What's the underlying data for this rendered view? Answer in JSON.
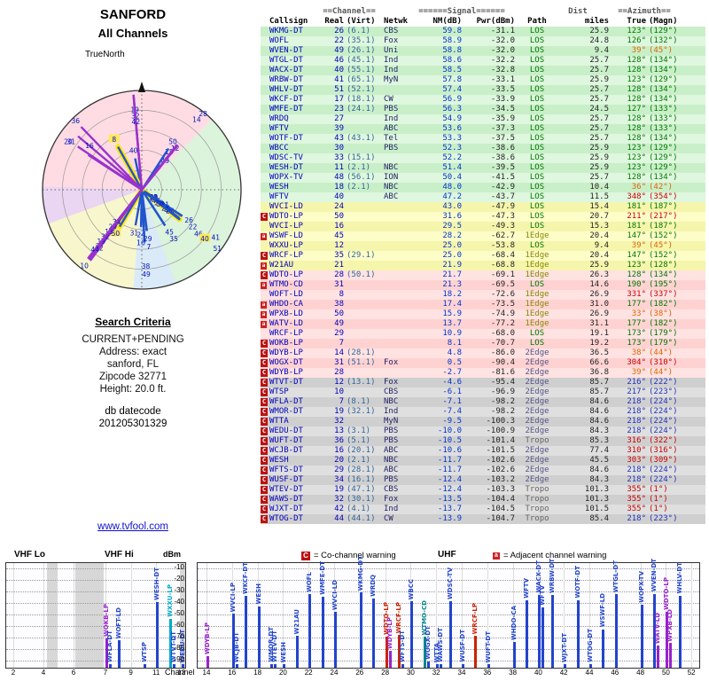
{
  "polar": {
    "title": "SANFORD",
    "subtitle": "All Channels",
    "north": "TrueNorth",
    "wedges": [
      {
        "from": 315,
        "to": 45,
        "color": "#ffc0cc"
      },
      {
        "from": 45,
        "to": 160,
        "color": "#bfe9bf"
      },
      {
        "from": 160,
        "to": 185,
        "color": "#bcd9f2"
      },
      {
        "from": 185,
        "to": 250,
        "color": "#f3efa2"
      },
      {
        "from": 250,
        "to": 272,
        "color": "#d9b3e8"
      },
      {
        "from": 272,
        "to": 315,
        "color": "#ffc0cc"
      }
    ]
  },
  "criteria": {
    "title": "Search Criteria",
    "lines": [
      "CURRENT+PENDING",
      "Address: exact",
      "sanford, FL",
      "Zipcode 32771",
      "Height: 20.0 ft."
    ],
    "datecode_label": "db datecode",
    "datecode": "201205301329"
  },
  "link": {
    "text": "www.tvfool.com"
  },
  "legend": {
    "c_symbol": "C",
    "c_text": "= Co-channel warning",
    "a_symbol": "a",
    "a_text": "= Adjacent channel warning"
  },
  "chart_data": {
    "type": "table",
    "table": {
      "group_headers": {
        "channel": "==Channel==",
        "signal": "======Signal======",
        "dist": "Dist",
        "azimuth": "==Azimuth=="
      },
      "columns": [
        "Callsign",
        "Real",
        "(Virt)",
        "Netwk",
        "NM(dB)",
        "Pwr(dBm)",
        "Path",
        "miles",
        "True",
        "(Magn)"
      ],
      "rows": [
        {
          "cs": "WKMG-DT",
          "re": "26",
          "vi": "(6.1)",
          "nw": "CBS",
          "nm": "59.8",
          "pw": "-31.1",
          "pa": "LOS",
          "mi": "25.9",
          "tr": "123°",
          "mg": "(129°)",
          "b": "g",
          "f": "",
          "ac": "g"
        },
        {
          "cs": "WOFL",
          "re": "22",
          "vi": "(35.1)",
          "nw": "Fox",
          "nm": "58.9",
          "pw": "-32.0",
          "pa": "LOS",
          "mi": "24.8",
          "tr": "126°",
          "mg": "(132°)",
          "b": "g",
          "f": "",
          "ac": "g"
        },
        {
          "cs": "WVEN-DT",
          "re": "49",
          "vi": "(26.1)",
          "nw": "Uni",
          "nm": "58.8",
          "pw": "-32.0",
          "pa": "LOS",
          "mi": "9.4",
          "tr": "39°",
          "mg": "(45°)",
          "b": "g",
          "f": "",
          "ac": "o"
        },
        {
          "cs": "WTGL-DT",
          "re": "46",
          "vi": "(45.1)",
          "nw": "Ind",
          "nm": "58.6",
          "pw": "-32.2",
          "pa": "LOS",
          "mi": "25.7",
          "tr": "128°",
          "mg": "(134°)",
          "b": "g",
          "f": "",
          "ac": "g"
        },
        {
          "cs": "WACX-DT",
          "re": "40",
          "vi": "(55.1)",
          "nw": "Ind",
          "nm": "58.5",
          "pw": "-32.8",
          "pa": "LOS",
          "mi": "25.7",
          "tr": "128°",
          "mg": "(134°)",
          "b": "g",
          "f": "",
          "ac": "g",
          "sh": true
        },
        {
          "cs": "WRBW-DT",
          "re": "41",
          "vi": "(65.1)",
          "nw": "MyN",
          "nm": "57.8",
          "pw": "-33.1",
          "pa": "LOS",
          "mi": "25.9",
          "tr": "123°",
          "mg": "(129°)",
          "b": "g",
          "f": "",
          "ac": "g"
        },
        {
          "cs": "WHLV-DT",
          "re": "51",
          "vi": "(52.1)",
          "nw": "",
          "nm": "57.4",
          "pw": "-33.5",
          "pa": "LOS",
          "mi": "25.7",
          "tr": "128°",
          "mg": "(134°)",
          "b": "g",
          "f": "",
          "ac": "g"
        },
        {
          "cs": "WKCF-DT",
          "re": "17",
          "vi": "(18.1)",
          "nw": "CW",
          "nm": "56.9",
          "pw": "-33.9",
          "pa": "LOS",
          "mi": "25.7",
          "tr": "128°",
          "mg": "(134°)",
          "b": "g",
          "f": "",
          "ac": "g"
        },
        {
          "cs": "WMFE-DT",
          "re": "23",
          "vi": "(24.1)",
          "nw": "PBS",
          "nm": "56.3",
          "pw": "-34.5",
          "pa": "LOS",
          "mi": "24.5",
          "tr": "127°",
          "mg": "(133°)",
          "b": "g",
          "f": "",
          "ac": "g"
        },
        {
          "cs": "WRDQ",
          "re": "27",
          "vi": "",
          "nw": "Ind",
          "nm": "54.9",
          "pw": "-35.9",
          "pa": "LOS",
          "mi": "25.7",
          "tr": "128°",
          "mg": "(133°)",
          "b": "g",
          "f": "",
          "ac": "g"
        },
        {
          "cs": "WFTV",
          "re": "39",
          "vi": "",
          "nw": "ABC",
          "nm": "53.6",
          "pw": "-37.3",
          "pa": "LOS",
          "mi": "25.7",
          "tr": "128°",
          "mg": "(133°)",
          "b": "g",
          "f": "",
          "ac": "g"
        },
        {
          "cs": "WOTF-DT",
          "re": "43",
          "vi": "(43.1)",
          "nw": "Tel",
          "nm": "53.3",
          "pw": "-37.5",
          "pa": "LOS",
          "mi": "25.7",
          "tr": "128°",
          "mg": "(134°)",
          "b": "g",
          "f": "",
          "ac": "g"
        },
        {
          "cs": "WBCC",
          "re": "30",
          "vi": "",
          "nw": "PBS",
          "nm": "52.3",
          "pw": "-38.6",
          "pa": "LOS",
          "mi": "25.9",
          "tr": "123°",
          "mg": "(129°)",
          "b": "g",
          "f": "",
          "ac": "g"
        },
        {
          "cs": "WDSC-TV",
          "re": "33",
          "vi": "(15.1)",
          "nw": "",
          "nm": "52.2",
          "pw": "-38.6",
          "pa": "LOS",
          "mi": "25.9",
          "tr": "123°",
          "mg": "(129°)",
          "b": "g",
          "f": "",
          "ac": "g"
        },
        {
          "cs": "WESH-DT",
          "re": "11",
          "vi": "(2.1)",
          "nw": "NBC",
          "nm": "51.4",
          "pw": "-39.5",
          "pa": "LOS",
          "mi": "25.9",
          "tr": "123°",
          "mg": "(129°)",
          "b": "g",
          "f": "",
          "ac": "g"
        },
        {
          "cs": "WOPX-TV",
          "re": "48",
          "vi": "(56.1)",
          "nw": "ION",
          "nm": "50.4",
          "pw": "-41.5",
          "pa": "LOS",
          "mi": "25.7",
          "tr": "128°",
          "mg": "(134°)",
          "b": "g",
          "f": "",
          "ac": "g"
        },
        {
          "cs": "WESH",
          "re": "18",
          "vi": "(2.1)",
          "nw": "NBC",
          "nm": "48.0",
          "pw": "-42.9",
          "pa": "LOS",
          "mi": "10.4",
          "tr": "36°",
          "mg": "(42°)",
          "b": "g",
          "f": "",
          "ac": "o"
        },
        {
          "cs": "WFTV",
          "re": "40",
          "vi": "",
          "nw": "ABC",
          "nm": "47.2",
          "pw": "-43.7",
          "pa": "LOS",
          "mi": "11.5",
          "tr": "348°",
          "mg": "(354°)",
          "b": "g",
          "f": "",
          "ac": "r"
        },
        {
          "cs": "WVCI-LD",
          "re": "24",
          "vi": "",
          "nw": "",
          "nm": "43.0",
          "pw": "-47.9",
          "pa": "LOS",
          "mi": "15.4",
          "tr": "181°",
          "mg": "(187°)",
          "b": "y",
          "f": "",
          "ac": "g"
        },
        {
          "cs": "WDTO-LP",
          "re": "50",
          "vi": "",
          "nw": "",
          "nm": "31.6",
          "pw": "-47.3",
          "pa": "LOS",
          "mi": "20.7",
          "tr": "211°",
          "mg": "(217°)",
          "b": "y",
          "f": "C",
          "ac": "r",
          "hl": "#9922cc",
          "sh": true
        },
        {
          "cs": "WVCI-LP",
          "re": "16",
          "vi": "",
          "nw": "",
          "nm": "29.5",
          "pw": "-49.3",
          "pa": "LOS",
          "mi": "15.3",
          "tr": "181°",
          "mg": "(187°)",
          "b": "y",
          "f": "",
          "ac": "g"
        },
        {
          "cs": "WSWF-LD",
          "re": "45",
          "vi": "",
          "nw": "",
          "nm": "28.2",
          "pw": "-62.7",
          "pa": "1Edge",
          "mi": "20.4",
          "tr": "147°",
          "mg": "(152°)",
          "b": "y",
          "f": "a",
          "ac": "g"
        },
        {
          "cs": "WXXU-LP",
          "re": "12",
          "vi": "",
          "nw": "",
          "nm": "25.0",
          "pw": "-53.8",
          "pa": "LOS",
          "mi": "9.4",
          "tr": "39°",
          "mg": "(45°)",
          "b": "y",
          "f": "",
          "ac": "o",
          "hl": "#00aacc"
        },
        {
          "cs": "WRCF-LP",
          "re": "35",
          "vi": "(29.1)",
          "nw": "",
          "nm": "25.0",
          "pw": "-68.4",
          "pa": "1Edge",
          "mi": "20.4",
          "tr": "147°",
          "mg": "(152°)",
          "b": "y",
          "f": "C",
          "ac": "g",
          "hl": "#cc2200"
        },
        {
          "cs": "W21AU",
          "re": "21",
          "vi": "",
          "nw": "",
          "nm": "21.9",
          "pw": "-68.8",
          "pa": "1Edge",
          "mi": "25.9",
          "tr": "123°",
          "mg": "(128°)",
          "b": "y",
          "f": "a",
          "ac": "g"
        },
        {
          "cs": "WDTO-LP",
          "re": "28",
          "vi": "(50.1)",
          "nw": "",
          "nm": "21.7",
          "pw": "-69.1",
          "pa": "1Edge",
          "mi": "26.3",
          "tr": "128°",
          "mg": "(134°)",
          "b": "p",
          "f": "C",
          "ac": "g",
          "hl": "#cc2200"
        },
        {
          "cs": "WTMO-CD",
          "re": "31",
          "vi": "",
          "nw": "",
          "nm": "21.3",
          "pw": "-69.5",
          "pa": "LOS",
          "mi": "14.6",
          "tr": "190°",
          "mg": "(195°)",
          "b": "p",
          "f": "a",
          "ac": "g",
          "hl": "#008888"
        },
        {
          "cs": "WOFT-LD",
          "re": "8",
          "vi": "",
          "nw": "",
          "nm": "18.2",
          "pw": "-72.6",
          "pa": "1Edge",
          "mi": "26.9",
          "tr": "331°",
          "mg": "(337°)",
          "b": "p",
          "f": "",
          "ac": "r",
          "sh": true
        },
        {
          "cs": "WHDO-CA",
          "re": "38",
          "vi": "",
          "nw": "",
          "nm": "17.4",
          "pw": "-73.5",
          "pa": "1Edge",
          "mi": "31.0",
          "tr": "177°",
          "mg": "(182°)",
          "b": "p",
          "f": "a",
          "ac": "g"
        },
        {
          "cs": "WPXB-LD",
          "re": "50",
          "vi": "",
          "nw": "",
          "nm": "15.9",
          "pw": "-74.9",
          "pa": "1Edge",
          "mi": "26.9",
          "tr": "33°",
          "mg": "(38°)",
          "b": "p",
          "f": "a",
          "ac": "o",
          "hl": "#9922cc"
        },
        {
          "cs": "WATV-LD",
          "re": "49",
          "vi": "",
          "nw": "",
          "nm": "13.7",
          "pw": "-77.2",
          "pa": "1Edge",
          "mi": "31.1",
          "tr": "177°",
          "mg": "(182°)",
          "b": "p",
          "f": "a",
          "ac": "g",
          "hl": "#9922cc"
        },
        {
          "cs": "WRCF-LP",
          "re": "29",
          "vi": "",
          "nw": "",
          "nm": "10.9",
          "pw": "-68.0",
          "pa": "LOS",
          "mi": "19.1",
          "tr": "173°",
          "mg": "(179°)",
          "b": "p",
          "f": "",
          "ac": "g",
          "hl": "#cc2200"
        },
        {
          "cs": "WOKB-LP",
          "re": "7",
          "vi": "",
          "nw": "",
          "nm": "8.1",
          "pw": "-70.7",
          "pa": "LOS",
          "mi": "19.2",
          "tr": "173°",
          "mg": "(179°)",
          "b": "p",
          "f": "C",
          "ac": "g",
          "hl": "#9922cc"
        },
        {
          "cs": "WDYB-LP",
          "re": "14",
          "vi": "(28.1)",
          "nw": "",
          "nm": "4.8",
          "pw": "-86.0",
          "pa": "2Edge",
          "mi": "36.5",
          "tr": "38°",
          "mg": "(44°)",
          "b": "p",
          "f": "C",
          "ac": "o",
          "hl": "#9922cc"
        },
        {
          "cs": "WOGX-DT",
          "re": "31",
          "vi": "(51.1)",
          "nw": "Fox",
          "nm": "0.5",
          "pw": "-90.4",
          "pa": "2Edge",
          "mi": "66.6",
          "tr": "304°",
          "mg": "(310°)",
          "b": "p",
          "f": "C",
          "ac": "r"
        },
        {
          "cs": "WDYB-LP",
          "re": "28",
          "vi": "",
          "nw": "",
          "nm": "-2.7",
          "pw": "-81.6",
          "pa": "2Edge",
          "mi": "36.8",
          "tr": "39°",
          "mg": "(44°)",
          "b": "p",
          "f": "C",
          "ac": "o",
          "hl": "#9922cc"
        },
        {
          "cs": "WTVT-DT",
          "re": "12",
          "vi": "(13.1)",
          "nw": "Fox",
          "nm": "-4.6",
          "pw": "-95.4",
          "pa": "2Edge",
          "mi": "85.7",
          "tr": "216°",
          "mg": "(222°)",
          "b": "x",
          "f": "C",
          "ac": "b"
        },
        {
          "cs": "WTSP",
          "re": "10",
          "vi": "",
          "nw": "CBS",
          "nm": "-6.1",
          "pw": "-96.9",
          "pa": "2Edge",
          "mi": "85.7",
          "tr": "217°",
          "mg": "(223°)",
          "b": "x",
          "f": "C",
          "ac": "b"
        },
        {
          "cs": "WFLA-DT",
          "re": "7",
          "vi": "(8.1)",
          "nw": "NBC",
          "nm": "-7.1",
          "pw": "-98.2",
          "pa": "2Edge",
          "mi": "84.6",
          "tr": "218°",
          "mg": "(224°)",
          "b": "x",
          "f": "C",
          "ac": "b"
        },
        {
          "cs": "WMOR-DT",
          "re": "19",
          "vi": "(32.1)",
          "nw": "Ind",
          "nm": "-7.4",
          "pw": "-98.2",
          "pa": "2Edge",
          "mi": "84.6",
          "tr": "218°",
          "mg": "(224°)",
          "b": "x",
          "f": "C",
          "ac": "b"
        },
        {
          "cs": "WTTA",
          "re": "32",
          "vi": "",
          "nw": "MyN",
          "nm": "-9.5",
          "pw": "-100.3",
          "pa": "2Edge",
          "mi": "84.6",
          "tr": "218°",
          "mg": "(224°)",
          "b": "x",
          "f": "C",
          "ac": "b"
        },
        {
          "cs": "WEDU-DT",
          "re": "13",
          "vi": "(3.1)",
          "nw": "PBS",
          "nm": "-10.0",
          "pw": "-100.9",
          "pa": "2Edge",
          "mi": "84.3",
          "tr": "218°",
          "mg": "(224°)",
          "b": "x",
          "f": "C",
          "ac": "b"
        },
        {
          "cs": "WUFT-DT",
          "re": "36",
          "vi": "(5.1)",
          "nw": "PBS",
          "nm": "-10.5",
          "pw": "-101.4",
          "pa": "Tropo",
          "mi": "85.3",
          "tr": "316°",
          "mg": "(322°)",
          "b": "x",
          "f": "C",
          "ac": "r"
        },
        {
          "cs": "WCJB-DT",
          "re": "16",
          "vi": "(20.1)",
          "nw": "ABC",
          "nm": "-10.6",
          "pw": "-101.5",
          "pa": "2Edge",
          "mi": "77.4",
          "tr": "310°",
          "mg": "(316°)",
          "b": "x",
          "f": "C",
          "ac": "r"
        },
        {
          "cs": "WESH",
          "re": "20",
          "vi": "(2.1)",
          "nw": "NBC",
          "nm": "-11.7",
          "pw": "-102.6",
          "pa": "2Edge",
          "mi": "45.5",
          "tr": "303°",
          "mg": "(309°)",
          "b": "x",
          "f": "C",
          "ac": "r"
        },
        {
          "cs": "WFTS-DT",
          "re": "29",
          "vi": "(28.1)",
          "nw": "ABC",
          "nm": "-11.7",
          "pw": "-102.6",
          "pa": "2Edge",
          "mi": "84.6",
          "tr": "218°",
          "mg": "(224°)",
          "b": "x",
          "f": "C",
          "ac": "b"
        },
        {
          "cs": "WUSF-DT",
          "re": "34",
          "vi": "(16.1)",
          "nw": "PBS",
          "nm": "-12.4",
          "pw": "-103.2",
          "pa": "2Edge",
          "mi": "84.3",
          "tr": "218°",
          "mg": "(224°)",
          "b": "x",
          "f": "C",
          "ac": "b"
        },
        {
          "cs": "WTEV-DT",
          "re": "19",
          "vi": "(47.1)",
          "nw": "CBS",
          "nm": "-12.4",
          "pw": "-103.3",
          "pa": "Tropo",
          "mi": "101.3",
          "tr": "355°",
          "mg": "(1°)",
          "b": "x",
          "f": "C",
          "ac": "r"
        },
        {
          "cs": "WAWS-DT",
          "re": "32",
          "vi": "(30.1)",
          "nw": "Fox",
          "nm": "-13.5",
          "pw": "-104.4",
          "pa": "Tropo",
          "mi": "101.3",
          "tr": "355°",
          "mg": "(1°)",
          "b": "x",
          "f": "C",
          "ac": "r"
        },
        {
          "cs": "WJXT-DT",
          "re": "42",
          "vi": "(4.1)",
          "nw": "Ind",
          "nm": "-13.7",
          "pw": "-104.5",
          "pa": "Tropo",
          "mi": "101.5",
          "tr": "355°",
          "mg": "(1°)",
          "b": "x",
          "f": "C",
          "ac": "r"
        },
        {
          "cs": "WTOG-DT",
          "re": "44",
          "vi": "(44.1)",
          "nw": "CW",
          "nm": "-13.9",
          "pw": "-104.7",
          "pa": "Tropo",
          "mi": "85.4",
          "tr": "218°",
          "mg": "(223°)",
          "b": "x",
          "f": "C",
          "ac": "b"
        }
      ]
    },
    "spectrum": {
      "dbm_label": "dBm",
      "channel_label": "Channel",
      "uhf_label": "UHF",
      "vhf_lo_label": "VHF Lo",
      "vhf_hi_label": "VHF Hi",
      "dbm_ticks": [
        -10,
        -20,
        -30,
        -40,
        -50,
        -60,
        -70,
        -80,
        -90
      ],
      "vhf_ticks": [
        2,
        4,
        6,
        7,
        9,
        11,
        13
      ],
      "uhf_ticks": [
        14,
        16,
        18,
        20,
        22,
        24,
        26,
        28,
        30,
        32,
        34,
        36,
        38,
        40,
        42,
        44,
        46,
        48,
        50,
        52
      ],
      "ylim": [
        -10,
        -90
      ]
    }
  }
}
